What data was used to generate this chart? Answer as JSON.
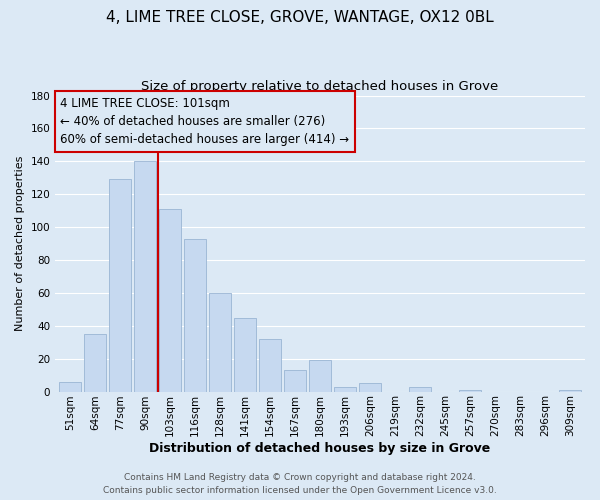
{
  "title": "4, LIME TREE CLOSE, GROVE, WANTAGE, OX12 0BL",
  "subtitle": "Size of property relative to detached houses in Grove",
  "xlabel": "Distribution of detached houses by size in Grove",
  "ylabel": "Number of detached properties",
  "bar_labels": [
    "51sqm",
    "64sqm",
    "77sqm",
    "90sqm",
    "103sqm",
    "116sqm",
    "128sqm",
    "141sqm",
    "154sqm",
    "167sqm",
    "180sqm",
    "193sqm",
    "206sqm",
    "219sqm",
    "232sqm",
    "245sqm",
    "257sqm",
    "270sqm",
    "283sqm",
    "296sqm",
    "309sqm"
  ],
  "bar_values": [
    6,
    35,
    129,
    140,
    111,
    93,
    60,
    45,
    32,
    13,
    19,
    3,
    5,
    0,
    3,
    0,
    1,
    0,
    0,
    0,
    1
  ],
  "bar_color": "#c6d9f0",
  "bar_edge_color": "#9ab5d4",
  "ylim": [
    0,
    180
  ],
  "yticks": [
    0,
    20,
    40,
    60,
    80,
    100,
    120,
    140,
    160,
    180
  ],
  "grid_color": "#ffffff",
  "bg_color": "#dce9f5",
  "annotation_line1": "4 LIME TREE CLOSE: 101sqm",
  "annotation_line2": "← 40% of detached houses are smaller (276)",
  "annotation_line3": "60% of semi-detached houses are larger (414) →",
  "redline_color": "#cc0000",
  "footer1": "Contains HM Land Registry data © Crown copyright and database right 2024.",
  "footer2": "Contains public sector information licensed under the Open Government Licence v3.0.",
  "title_fontsize": 11,
  "subtitle_fontsize": 9.5,
  "xlabel_fontsize": 9,
  "ylabel_fontsize": 8,
  "tick_fontsize": 7.5,
  "annotation_fontsize": 8.5,
  "footer_fontsize": 6.5
}
